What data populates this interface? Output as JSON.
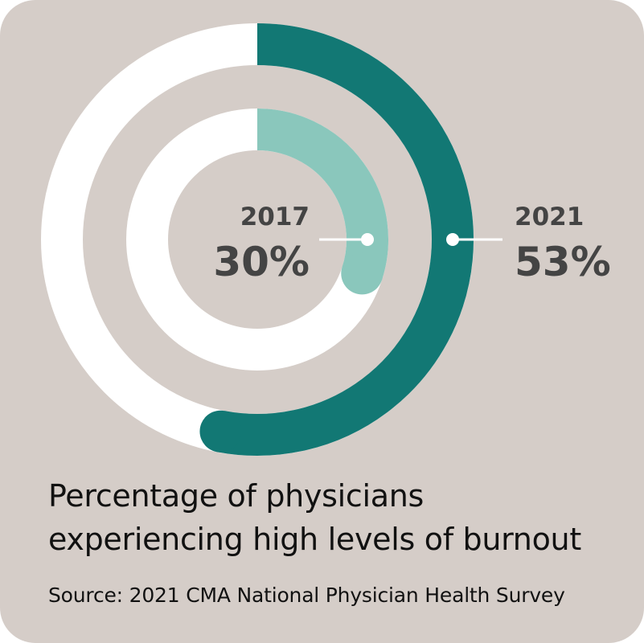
{
  "chart_data": {
    "type": "radial-bar",
    "series": [
      {
        "name": "2017",
        "value": 30,
        "value_label": "30%",
        "color": "#8ac7bc"
      },
      {
        "name": "2021",
        "value": 53,
        "value_label": "53%",
        "color": "#127874"
      }
    ],
    "max": 100,
    "track_color": "#ffffff",
    "label_color": "#444444",
    "title_lines": [
      "Percentage of physicians",
      "experiencing high levels of burnout"
    ],
    "source": "Source: 2021 CMA National Physician Health Survey"
  }
}
